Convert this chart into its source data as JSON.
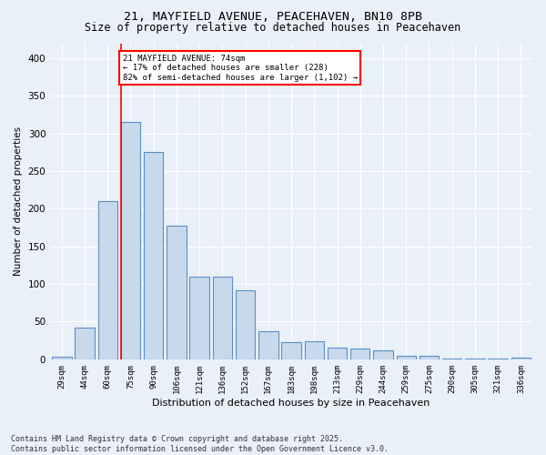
{
  "title1": "21, MAYFIELD AVENUE, PEACEHAVEN, BN10 8PB",
  "title2": "Size of property relative to detached houses in Peacehaven",
  "xlabel": "Distribution of detached houses by size in Peacehaven",
  "ylabel": "Number of detached properties",
  "categories": [
    "29sqm",
    "44sqm",
    "60sqm",
    "75sqm",
    "90sqm",
    "106sqm",
    "121sqm",
    "136sqm",
    "152sqm",
    "167sqm",
    "183sqm",
    "198sqm",
    "213sqm",
    "229sqm",
    "244sqm",
    "259sqm",
    "275sqm",
    "290sqm",
    "305sqm",
    "321sqm",
    "336sqm"
  ],
  "values": [
    3,
    42,
    210,
    315,
    275,
    178,
    110,
    110,
    92,
    37,
    23,
    24,
    16,
    14,
    12,
    5,
    5,
    1,
    1,
    1,
    2
  ],
  "bar_color": "#c9d9ec",
  "bar_edge_color": "#5b8ec4",
  "vline_x_idx": 3,
  "vline_color": "red",
  "annotation_text": "21 MAYFIELD AVENUE: 74sqm\n← 17% of detached houses are smaller (228)\n82% of semi-detached houses are larger (1,102) →",
  "annotation_box_color": "white",
  "annotation_box_edge": "red",
  "ylim": [
    0,
    420
  ],
  "yticks": [
    0,
    50,
    100,
    150,
    200,
    250,
    300,
    350,
    400
  ],
  "bg_color": "#eaf0f8",
  "footnote": "Contains HM Land Registry data © Crown copyright and database right 2025.\nContains public sector information licensed under the Open Government Licence v3.0."
}
